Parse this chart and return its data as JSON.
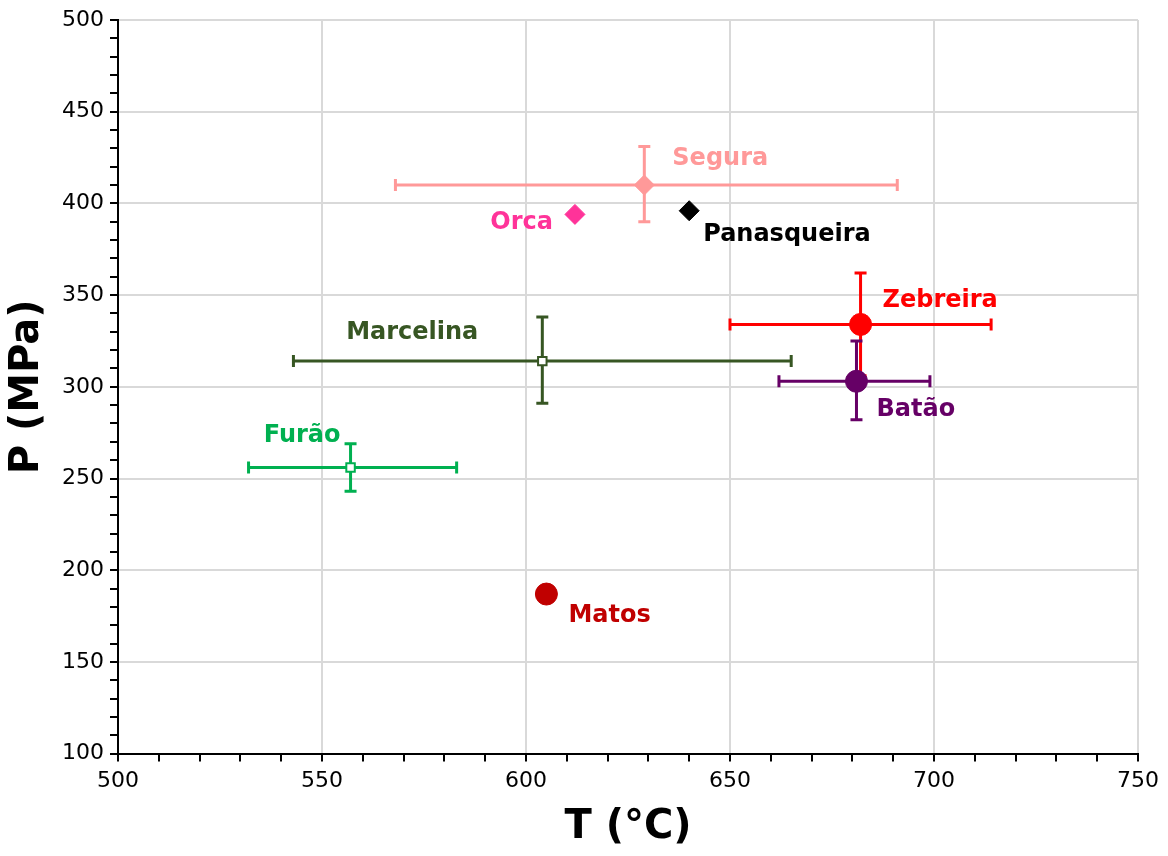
{
  "chart_data": {
    "type": "scatter",
    "xlabel": "T (°C)",
    "ylabel": "P (MPa)",
    "xlim": [
      500,
      750
    ],
    "ylim": [
      100,
      500
    ],
    "xticks": [
      500,
      {
        "value": 510,
        "label": null
      },
      {
        "value": 520,
        "label": null
      },
      {
        "value": 530,
        "label": null
      },
      {
        "value": 540,
        "label": null
      },
      550,
      {
        "value": 560,
        "label": null
      },
      {
        "value": 570,
        "label": null
      },
      {
        "value": 580,
        "label": null
      },
      {
        "value": 590,
        "label": null
      },
      600,
      {
        "value": 610,
        "label": null
      },
      {
        "value": 620,
        "label": null
      },
      {
        "value": 630,
        "label": null
      },
      {
        "value": 640,
        "label": null
      },
      650,
      {
        "value": 660,
        "label": null
      },
      {
        "value": 670,
        "label": null
      },
      {
        "value": 680,
        "label": null
      },
      {
        "value": 690,
        "label": null
      },
      700,
      {
        "value": 710,
        "label": null
      },
      {
        "value": 720,
        "label": null
      },
      {
        "value": 730,
        "label": null
      },
      {
        "value": 740,
        "label": null
      },
      750
    ],
    "yticks": [
      100,
      {
        "value": 110,
        "label": null
      },
      {
        "value": 120,
        "label": null
      },
      {
        "value": 130,
        "label": null
      },
      {
        "value": 140,
        "label": null
      },
      150,
      {
        "value": 160,
        "label": null
      },
      {
        "value": 170,
        "label": null
      },
      {
        "value": 180,
        "label": null
      },
      {
        "value": 190,
        "label": null
      },
      200,
      {
        "value": 210,
        "label": null
      },
      {
        "value": 220,
        "label": null
      },
      {
        "value": 230,
        "label": null
      },
      {
        "value": 240,
        "label": null
      },
      250,
      {
        "value": 260,
        "label": null
      },
      {
        "value": 270,
        "label": null
      },
      {
        "value": 280,
        "label": null
      },
      {
        "value": 290,
        "label": null
      },
      300,
      {
        "value": 310,
        "label": null
      },
      {
        "value": 320,
        "label": null
      },
      {
        "value": 330,
        "label": null
      },
      {
        "value": 340,
        "label": null
      },
      350,
      {
        "value": 360,
        "label": null
      },
      {
        "value": 370,
        "label": null
      },
      {
        "value": 380,
        "label": null
      },
      {
        "value": 390,
        "label": null
      },
      400,
      {
        "value": 410,
        "label": null
      },
      {
        "value": 420,
        "label": null
      },
      {
        "value": 430,
        "label": null
      },
      {
        "value": 440,
        "label": null
      },
      450,
      {
        "value": 460,
        "label": null
      },
      {
        "value": 470,
        "label": null
      },
      {
        "value": 480,
        "label": null
      },
      {
        "value": 490,
        "label": null
      },
      500
    ],
    "grid": true,
    "legend": false,
    "series": [
      {
        "name": "Segura",
        "color": "#ff9999",
        "marker": "diamond",
        "x": [
          629
        ],
        "values": [
          410
        ],
        "errors": [
          [
            390,
            431
          ]
        ],
        "xerrors": [
          [
            568,
            691
          ]
        ]
      },
      {
        "name": "Orca",
        "color": "#ff3399",
        "marker": "diamond",
        "x": [
          612
        ],
        "values": [
          394
        ]
      },
      {
        "name": "Panasqueira",
        "color": "#000000",
        "marker": "diamond",
        "x": [
          640
        ],
        "values": [
          396
        ]
      },
      {
        "name": "Zebreira",
        "color": "#ff0000",
        "marker": "circle",
        "x": [
          682
        ],
        "values": [
          334
        ],
        "errors": [
          [
            306,
            362
          ]
        ],
        "xerrors": [
          [
            650,
            714
          ]
        ]
      },
      {
        "name": "Marcelina",
        "color": "#375623",
        "marker": "square",
        "x": [
          604
        ],
        "values": [
          314
        ],
        "errors": [
          [
            291,
            338
          ]
        ],
        "xerrors": [
          [
            543,
            665
          ]
        ]
      },
      {
        "name": "Batão",
        "color": "#660066",
        "marker": "circle",
        "x": [
          681
        ],
        "values": [
          303
        ],
        "errors": [
          [
            282,
            325
          ]
        ],
        "xerrors": [
          [
            662,
            699
          ]
        ]
      },
      {
        "name": "Furão",
        "color": "#00b050",
        "marker": "square",
        "x": [
          557
        ],
        "values": [
          256
        ],
        "errors": [
          [
            243,
            269
          ]
        ],
        "xerrors": [
          [
            532,
            583
          ]
        ]
      },
      {
        "name": "Matos",
        "color": "#c00000",
        "marker": "circle",
        "x": [
          605
        ],
        "values": [
          187
        ]
      }
    ]
  }
}
